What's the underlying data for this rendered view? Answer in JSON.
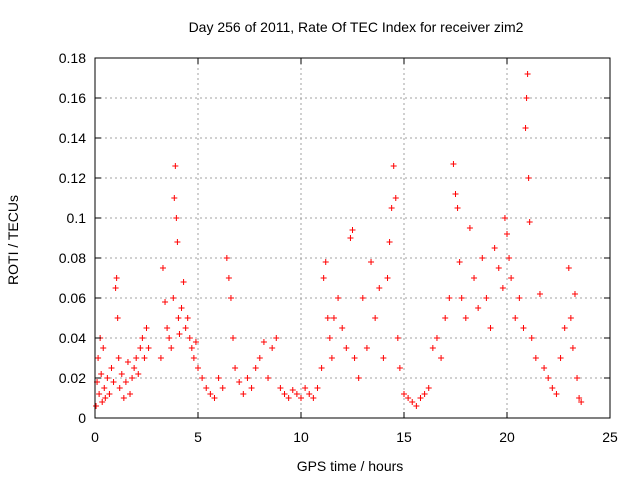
{
  "chart_data": {
    "type": "scatter",
    "title": "Day 256 of 2011, Rate Of TEC Index for receiver zim2",
    "xlabel": "GPS time / hours",
    "ylabel": "ROTI / TECUs",
    "xlim": [
      0,
      25
    ],
    "ylim": [
      0,
      0.18
    ],
    "xticks": [
      0,
      5,
      10,
      15,
      20,
      25
    ],
    "yticks": [
      0,
      0.02,
      0.04,
      0.06,
      0.08,
      0.1,
      0.12,
      0.14,
      0.16,
      0.18
    ],
    "xtick_labels": [
      "0",
      "5",
      "10",
      "15",
      "20",
      "25"
    ],
    "ytick_labels": [
      "0",
      "0.02",
      "0.04",
      "0.06",
      "0.08",
      "0.1",
      "0.12",
      "0.14",
      "0.16",
      "0.18"
    ],
    "grid": true,
    "marker": "plus",
    "color": "#ff0000",
    "series": [
      {
        "points": [
          [
            0.05,
            0.006
          ],
          [
            0.1,
            0.018
          ],
          [
            0.15,
            0.03
          ],
          [
            0.2,
            0.012
          ],
          [
            0.25,
            0.04
          ],
          [
            0.3,
            0.022
          ],
          [
            0.35,
            0.008
          ],
          [
            0.4,
            0.035
          ],
          [
            0.45,
            0.015
          ],
          [
            0.5,
            0.01
          ],
          [
            0.6,
            0.02
          ],
          [
            0.7,
            0.012
          ],
          [
            0.8,
            0.025
          ],
          [
            0.9,
            0.018
          ],
          [
            1.0,
            0.065
          ],
          [
            1.05,
            0.07
          ],
          [
            1.1,
            0.05
          ],
          [
            1.15,
            0.03
          ],
          [
            1.2,
            0.015
          ],
          [
            1.3,
            0.022
          ],
          [
            1.4,
            0.01
          ],
          [
            1.5,
            0.018
          ],
          [
            1.6,
            0.028
          ],
          [
            1.7,
            0.012
          ],
          [
            1.8,
            0.02
          ],
          [
            1.9,
            0.025
          ],
          [
            2.0,
            0.03
          ],
          [
            2.1,
            0.022
          ],
          [
            2.2,
            0.035
          ],
          [
            2.3,
            0.04
          ],
          [
            2.4,
            0.03
          ],
          [
            2.5,
            0.045
          ],
          [
            2.6,
            0.035
          ],
          [
            3.2,
            0.03
          ],
          [
            3.3,
            0.075
          ],
          [
            3.4,
            0.058
          ],
          [
            3.5,
            0.045
          ],
          [
            3.6,
            0.04
          ],
          [
            3.7,
            0.035
          ],
          [
            3.8,
            0.06
          ],
          [
            3.85,
            0.11
          ],
          [
            3.9,
            0.126
          ],
          [
            3.95,
            0.1
          ],
          [
            4.0,
            0.088
          ],
          [
            4.05,
            0.05
          ],
          [
            4.1,
            0.042
          ],
          [
            4.2,
            0.055
          ],
          [
            4.3,
            0.068
          ],
          [
            4.4,
            0.045
          ],
          [
            4.5,
            0.05
          ],
          [
            4.6,
            0.04
          ],
          [
            4.7,
            0.035
          ],
          [
            4.8,
            0.03
          ],
          [
            4.9,
            0.038
          ],
          [
            5.0,
            0.025
          ],
          [
            5.2,
            0.02
          ],
          [
            5.4,
            0.015
          ],
          [
            5.6,
            0.012
          ],
          [
            5.8,
            0.01
          ],
          [
            6.0,
            0.02
          ],
          [
            6.2,
            0.015
          ],
          [
            6.4,
            0.08
          ],
          [
            6.5,
            0.07
          ],
          [
            6.6,
            0.06
          ],
          [
            6.7,
            0.04
          ],
          [
            6.8,
            0.025
          ],
          [
            7.0,
            0.018
          ],
          [
            7.2,
            0.012
          ],
          [
            7.4,
            0.02
          ],
          [
            7.6,
            0.015
          ],
          [
            7.8,
            0.025
          ],
          [
            8.0,
            0.03
          ],
          [
            8.2,
            0.038
          ],
          [
            8.4,
            0.02
          ],
          [
            8.6,
            0.035
          ],
          [
            8.8,
            0.04
          ],
          [
            9.0,
            0.015
          ],
          [
            9.2,
            0.012
          ],
          [
            9.4,
            0.01
          ],
          [
            9.6,
            0.014
          ],
          [
            9.8,
            0.012
          ],
          [
            10.0,
            0.01
          ],
          [
            10.2,
            0.015
          ],
          [
            10.4,
            0.012
          ],
          [
            10.6,
            0.01
          ],
          [
            10.8,
            0.015
          ],
          [
            11.0,
            0.025
          ],
          [
            11.1,
            0.07
          ],
          [
            11.2,
            0.078
          ],
          [
            11.3,
            0.05
          ],
          [
            11.4,
            0.04
          ],
          [
            11.5,
            0.03
          ],
          [
            11.6,
            0.05
          ],
          [
            11.8,
            0.06
          ],
          [
            12.0,
            0.045
          ],
          [
            12.2,
            0.035
          ],
          [
            12.4,
            0.09
          ],
          [
            12.5,
            0.094
          ],
          [
            12.6,
            0.03
          ],
          [
            12.8,
            0.02
          ],
          [
            13.0,
            0.06
          ],
          [
            13.2,
            0.035
          ],
          [
            13.4,
            0.078
          ],
          [
            13.6,
            0.05
          ],
          [
            13.8,
            0.065
          ],
          [
            14.0,
            0.03
          ],
          [
            14.2,
            0.07
          ],
          [
            14.3,
            0.088
          ],
          [
            14.4,
            0.105
          ],
          [
            14.5,
            0.126
          ],
          [
            14.6,
            0.11
          ],
          [
            14.7,
            0.04
          ],
          [
            14.8,
            0.025
          ],
          [
            15.0,
            0.012
          ],
          [
            15.2,
            0.01
          ],
          [
            15.4,
            0.008
          ],
          [
            15.6,
            0.006
          ],
          [
            15.8,
            0.01
          ],
          [
            16.0,
            0.012
          ],
          [
            16.2,
            0.015
          ],
          [
            16.4,
            0.035
          ],
          [
            16.6,
            0.04
          ],
          [
            16.8,
            0.03
          ],
          [
            17.0,
            0.05
          ],
          [
            17.2,
            0.06
          ],
          [
            17.4,
            0.127
          ],
          [
            17.5,
            0.112
          ],
          [
            17.6,
            0.105
          ],
          [
            17.7,
            0.078
          ],
          [
            17.8,
            0.06
          ],
          [
            18.0,
            0.05
          ],
          [
            18.2,
            0.095
          ],
          [
            18.4,
            0.07
          ],
          [
            18.6,
            0.055
          ],
          [
            18.8,
            0.08
          ],
          [
            19.0,
            0.06
          ],
          [
            19.2,
            0.045
          ],
          [
            19.4,
            0.085
          ],
          [
            19.6,
            0.075
          ],
          [
            19.8,
            0.065
          ],
          [
            19.9,
            0.1
          ],
          [
            20.0,
            0.092
          ],
          [
            20.1,
            0.08
          ],
          [
            20.2,
            0.07
          ],
          [
            20.4,
            0.05
          ],
          [
            20.6,
            0.06
          ],
          [
            20.8,
            0.045
          ],
          [
            20.9,
            0.145
          ],
          [
            20.95,
            0.16
          ],
          [
            21.0,
            0.172
          ],
          [
            21.05,
            0.12
          ],
          [
            21.1,
            0.098
          ],
          [
            21.2,
            0.04
          ],
          [
            21.4,
            0.03
          ],
          [
            21.6,
            0.062
          ],
          [
            21.8,
            0.025
          ],
          [
            22.0,
            0.02
          ],
          [
            22.2,
            0.015
          ],
          [
            22.4,
            0.012
          ],
          [
            22.6,
            0.03
          ],
          [
            22.8,
            0.045
          ],
          [
            23.0,
            0.075
          ],
          [
            23.1,
            0.05
          ],
          [
            23.2,
            0.035
          ],
          [
            23.3,
            0.062
          ],
          [
            23.4,
            0.02
          ],
          [
            23.5,
            0.01
          ],
          [
            23.6,
            0.008
          ]
        ]
      }
    ]
  }
}
